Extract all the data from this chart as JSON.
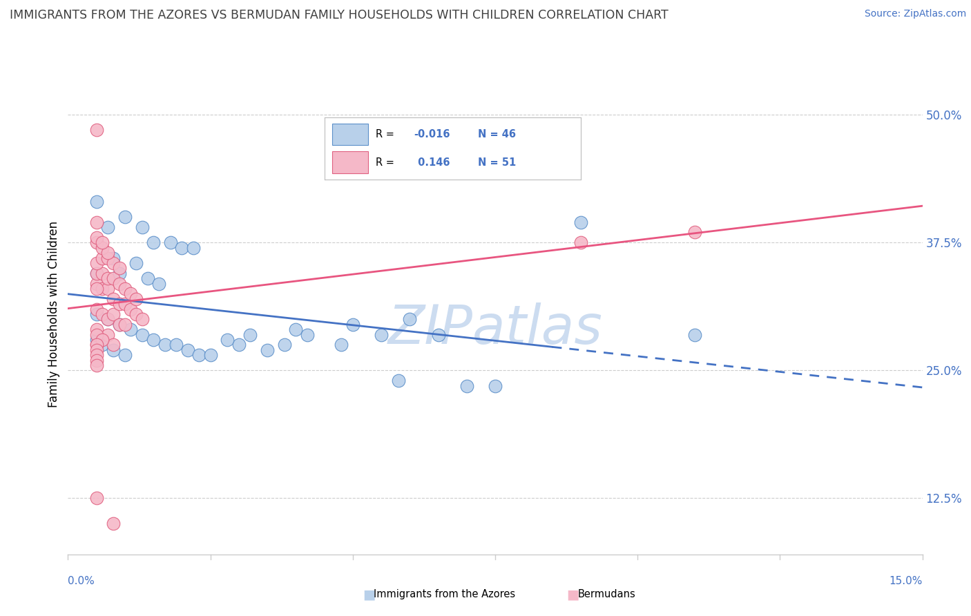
{
  "title": "IMMIGRANTS FROM THE AZORES VS BERMUDAN FAMILY HOUSEHOLDS WITH CHILDREN CORRELATION CHART",
  "source": "Source: ZipAtlas.com",
  "ylabel": "Family Households with Children",
  "yticks": [
    "12.5%",
    "25.0%",
    "37.5%",
    "50.0%"
  ],
  "ytick_vals": [
    0.125,
    0.25,
    0.375,
    0.5
  ],
  "xlim": [
    0.0,
    0.15
  ],
  "ylim": [
    0.07,
    0.54
  ],
  "blue_R": "-0.016",
  "blue_N": "46",
  "pink_R": "0.146",
  "pink_N": "51",
  "blue_fill": "#b8d0ea",
  "pink_fill": "#f5b8c8",
  "blue_edge": "#5b8fc9",
  "pink_edge": "#e06080",
  "blue_line_color": "#4472c4",
  "pink_line_color": "#e85580",
  "title_color": "#404040",
  "source_color": "#4472c4",
  "axis_label_color": "#4472c4",
  "grid_color": "#cccccc",
  "watermark_color": "#ccdcf0",
  "blue_line_solid_end": 0.085,
  "blue_scatter_x": [
    0.005,
    0.01,
    0.013,
    0.007,
    0.015,
    0.018,
    0.02,
    0.022,
    0.008,
    0.012,
    0.005,
    0.009,
    0.014,
    0.016,
    0.005,
    0.007,
    0.009,
    0.011,
    0.013,
    0.015,
    0.017,
    0.019,
    0.021,
    0.023,
    0.025,
    0.03,
    0.035,
    0.04,
    0.05,
    0.055,
    0.06,
    0.065,
    0.028,
    0.032,
    0.038,
    0.042,
    0.048,
    0.058,
    0.07,
    0.075,
    0.005,
    0.006,
    0.008,
    0.01,
    0.09,
    0.11
  ],
  "blue_scatter_y": [
    0.415,
    0.4,
    0.39,
    0.39,
    0.375,
    0.375,
    0.37,
    0.37,
    0.36,
    0.355,
    0.345,
    0.345,
    0.34,
    0.335,
    0.305,
    0.3,
    0.295,
    0.29,
    0.285,
    0.28,
    0.275,
    0.275,
    0.27,
    0.265,
    0.265,
    0.275,
    0.27,
    0.29,
    0.295,
    0.285,
    0.3,
    0.285,
    0.28,
    0.285,
    0.275,
    0.285,
    0.275,
    0.24,
    0.235,
    0.235,
    0.28,
    0.275,
    0.27,
    0.265,
    0.395,
    0.285
  ],
  "pink_scatter_x": [
    0.005,
    0.007,
    0.005,
    0.008,
    0.005,
    0.006,
    0.007,
    0.008,
    0.009,
    0.01,
    0.005,
    0.006,
    0.007,
    0.008,
    0.009,
    0.01,
    0.011,
    0.012,
    0.013,
    0.005,
    0.006,
    0.007,
    0.008,
    0.009,
    0.01,
    0.011,
    0.012,
    0.005,
    0.006,
    0.007,
    0.008,
    0.009,
    0.005,
    0.006,
    0.007,
    0.005,
    0.006,
    0.005,
    0.005,
    0.006,
    0.005,
    0.005,
    0.005,
    0.005,
    0.005,
    0.005,
    0.005,
    0.09,
    0.11,
    0.005,
    0.008
  ],
  "pink_scatter_y": [
    0.29,
    0.285,
    0.275,
    0.275,
    0.31,
    0.305,
    0.3,
    0.305,
    0.295,
    0.295,
    0.335,
    0.33,
    0.33,
    0.32,
    0.315,
    0.315,
    0.31,
    0.305,
    0.3,
    0.345,
    0.345,
    0.34,
    0.34,
    0.335,
    0.33,
    0.325,
    0.32,
    0.355,
    0.36,
    0.36,
    0.355,
    0.35,
    0.375,
    0.37,
    0.365,
    0.38,
    0.375,
    0.395,
    0.285,
    0.28,
    0.275,
    0.27,
    0.265,
    0.26,
    0.255,
    0.485,
    0.33,
    0.375,
    0.385,
    0.125,
    0.1
  ]
}
